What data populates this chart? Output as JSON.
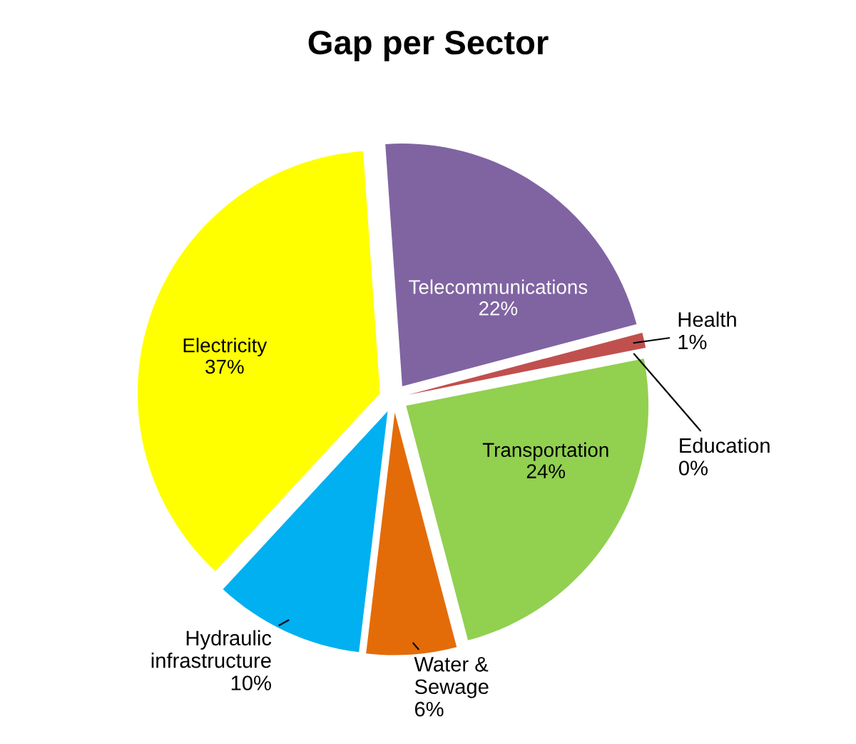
{
  "chart_data": {
    "type": "pie",
    "title": "Gap per Sector",
    "categories": [
      "Telecommunications",
      "Health",
      "Education",
      "Transportation",
      "Water & Sewage",
      "Hydraulic infrastructure",
      "Electricity"
    ],
    "values": [
      22,
      1,
      0,
      24,
      6,
      10,
      37
    ],
    "value_labels": [
      "22%",
      "1%",
      "0%",
      "24%",
      "6%",
      "10%",
      "37%"
    ],
    "colors": [
      "#8064a2",
      "#c0504d",
      "#4f81bd",
      "#92d050",
      "#e36c09",
      "#00b0f0",
      "#ffff00"
    ],
    "legend": false
  }
}
